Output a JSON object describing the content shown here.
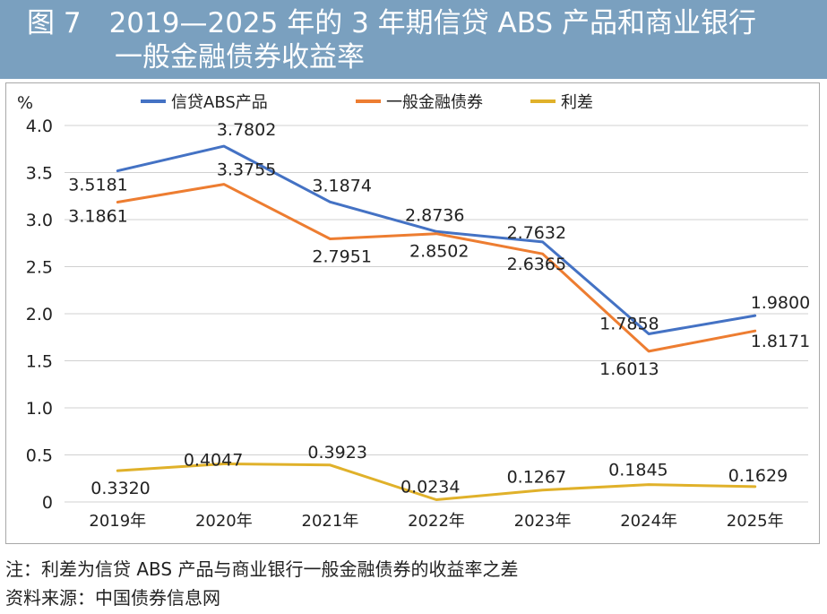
{
  "header": {
    "title_line1": "图 7　2019—2025 年的 3 年期信贷 ABS 产品和商业银行",
    "title_line2": "一般金融债券收益率"
  },
  "chart_data": {
    "type": "line",
    "ylabel": "%",
    "ylim": [
      0,
      4.0
    ],
    "yticks": [
      "0",
      "0.5",
      "1.0",
      "1.5",
      "2.0",
      "2.5",
      "3.0",
      "3.5",
      "4.0"
    ],
    "grid": true,
    "legend_position": "top",
    "categories": [
      "2019年",
      "2020年",
      "2021年",
      "2022年",
      "2023年",
      "2024年",
      "2025年"
    ],
    "series": [
      {
        "name": "信贷ABS产品",
        "color": "#4472c4",
        "values": [
          3.5181,
          3.7802,
          3.1874,
          2.8736,
          2.7632,
          1.7858,
          1.98
        ],
        "labels": [
          "3.5181",
          "3.7802",
          "3.1874",
          "2.8736",
          "2.7632",
          "1.7858",
          "1.9800"
        ]
      },
      {
        "name": "一般金融债券",
        "color": "#ed7d31",
        "values": [
          3.1861,
          3.3755,
          2.7951,
          2.8502,
          2.6365,
          1.6013,
          1.8171
        ],
        "labels": [
          "3.1861",
          "3.3755",
          "2.7951",
          "2.8502",
          "2.6365",
          "1.6013",
          "1.8171"
        ]
      },
      {
        "name": "利差",
        "color": "#e0b12a",
        "values": [
          0.332,
          0.4047,
          0.3923,
          0.0234,
          0.1267,
          0.1845,
          0.1629
        ],
        "labels": [
          "0.3320",
          "0.4047",
          "0.3923",
          "0.0234",
          "0.1267",
          "0.1845",
          "0.1629"
        ]
      }
    ]
  },
  "footer": {
    "note": "注：利差为信贷 ABS 产品与商业银行一般金融债券的收益率之差",
    "source": "资料来源：中国债券信息网"
  }
}
